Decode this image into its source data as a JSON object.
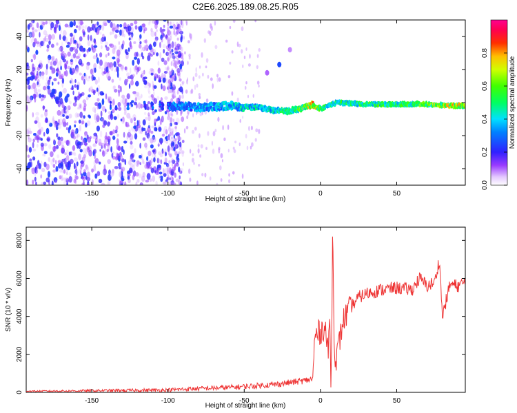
{
  "title": "C2E6.2025.189.08.25.R05",
  "colors": {
    "snr_line": "#ee3333",
    "spectrogram_low": "#7a2cff",
    "spectrogram_high": "#ff0000"
  },
  "chart_data": [
    {
      "type": "heatmap",
      "xlabel": "Height of straight line (km)",
      "ylabel": "Frequency (Hz)",
      "xlim": [
        -193,
        95
      ],
      "ylim": [
        -50,
        50
      ],
      "xticks": [
        -150,
        -100,
        -50,
        0,
        50
      ],
      "yticks": [
        -40,
        -20,
        0,
        20,
        40
      ],
      "grid": false,
      "colorbar": {
        "label": "Normalized spectral amplitude",
        "range": [
          0.0,
          1.0
        ],
        "ticks": [
          0.0,
          0.2,
          0.4,
          0.6,
          0.8
        ],
        "colormap": "rainbow (white-violet → blue → cyan → green → yellow → red → magenta)"
      },
      "signal_trace": {
        "description": "Narrow high-amplitude band near 0 Hz",
        "x": [
          -100,
          -80,
          -60,
          -40,
          -30,
          -20,
          -10,
          -5,
          0,
          10,
          30,
          50,
          70,
          90
        ],
        "frequency": [
          -2,
          -3,
          -2,
          -3,
          -5,
          -5,
          -3,
          -1,
          -4,
          0,
          -1,
          -1,
          -1,
          -2
        ],
        "amplitude": [
          0.35,
          0.4,
          0.45,
          0.5,
          0.5,
          0.6,
          0.7,
          0.85,
          0.6,
          0.55,
          0.6,
          0.6,
          0.7,
          0.8
        ]
      },
      "noise_region": {
        "description": "Scattered low-amplitude noise across all frequencies",
        "x_range": [
          -193,
          -100
        ],
        "amplitude_range": [
          0.0,
          0.2
        ]
      },
      "isolated_features": [
        {
          "x": -27,
          "frequency": 23,
          "amplitude": 0.25
        },
        {
          "x": -35,
          "frequency": 18,
          "amplitude": 0.1
        },
        {
          "x": -20,
          "frequency": 32,
          "amplitude": 0.08
        }
      ]
    },
    {
      "type": "line",
      "xlabel": "Height of straight line (km)",
      "ylabel": "SNR (10 * v/v)",
      "xlim": [
        -193,
        95
      ],
      "ylim": [
        0,
        8700
      ],
      "xticks": [
        -150,
        -100,
        -50,
        0,
        50
      ],
      "yticks": [
        0,
        2000,
        4000,
        6000,
        8000
      ],
      "grid": false,
      "series": [
        {
          "x": [
            -193,
            -150,
            -100,
            -80,
            -60,
            -40,
            -30,
            -20,
            -10,
            -5,
            -4,
            -3,
            0,
            3,
            5,
            6,
            7,
            8,
            9,
            10,
            12,
            15,
            20,
            25,
            30,
            40,
            50,
            60,
            65,
            70,
            75,
            78,
            80,
            85,
            90,
            95
          ],
          "values": [
            50,
            60,
            80,
            150,
            200,
            300,
            350,
            450,
            550,
            650,
            2500,
            3000,
            3200,
            3500,
            2000,
            4000,
            200,
            8600,
            3000,
            1500,
            2500,
            3800,
            4500,
            5000,
            5200,
            5400,
            5500,
            5400,
            6000,
            5600,
            5800,
            7000,
            4000,
            5700,
            5600,
            5800
          ]
        }
      ]
    }
  ]
}
